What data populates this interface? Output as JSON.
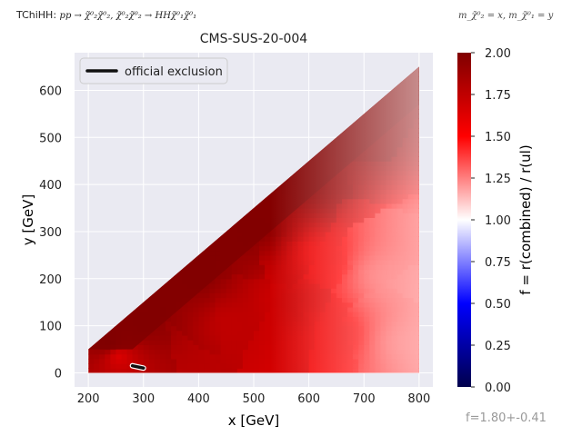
{
  "header": {
    "analysis_prefix": "TChiHH:",
    "analysis_process": "pp → χ̃⁰₂χ̃⁰₂, χ̃⁰₂χ̃⁰₂ → HHχ̃⁰₁χ̃⁰₁",
    "mass_note": "m_χ̃⁰₂ = x, m_χ̃⁰₁ = y",
    "title": "CMS-SUS-20-004"
  },
  "footer": {
    "fit_text": "f=1.80+-0.41"
  },
  "colors": {
    "axes_bg": "#eaeaf2",
    "grid": "#ffffff",
    "exclusion": "#111111",
    "cmap_low": "#00004c",
    "cmap_mid": "#ffffff",
    "cmap_high": "#800000"
  },
  "chart_data": {
    "type": "heatmap",
    "title": "CMS-SUS-20-004",
    "xlabel": "x [GeV]",
    "ylabel": "y [GeV]",
    "xlim": [
      175,
      825
    ],
    "ylim": [
      -30,
      680
    ],
    "xticks": [
      200,
      300,
      400,
      500,
      600,
      700,
      800
    ],
    "yticks": [
      0,
      100,
      200,
      300,
      400,
      500,
      600
    ],
    "grid": true,
    "legend": {
      "placement": "top-left",
      "entries": [
        "official exclusion"
      ]
    },
    "colorbar": {
      "label": "f = r(combined) / r(ul)",
      "range": [
        0.0,
        2.0
      ],
      "ticks": [
        "0.00",
        "0.25",
        "0.50",
        "0.75",
        "1.00",
        "1.25",
        "1.50",
        "1.75",
        "2.00"
      ],
      "colormap": "seismic"
    },
    "region": {
      "x_range": [
        200,
        800
      ],
      "y_min": 0,
      "y_max_rule": "y = x - 150"
    },
    "value_samples": [
      {
        "x": 230,
        "y": 60,
        "f": 2.0
      },
      {
        "x": 250,
        "y": 30,
        "f": 1.65
      },
      {
        "x": 300,
        "y": 100,
        "f": 1.95
      },
      {
        "x": 400,
        "y": 200,
        "f": 1.95
      },
      {
        "x": 450,
        "y": 100,
        "f": 1.75
      },
      {
        "x": 500,
        "y": 300,
        "f": 1.95
      },
      {
        "x": 550,
        "y": 150,
        "f": 1.7
      },
      {
        "x": 600,
        "y": 400,
        "f": 1.95
      },
      {
        "x": 620,
        "y": 250,
        "f": 1.55
      },
      {
        "x": 650,
        "y": 80,
        "f": 1.55
      },
      {
        "x": 700,
        "y": 500,
        "f": 1.95
      },
      {
        "x": 720,
        "y": 200,
        "f": 1.35
      },
      {
        "x": 760,
        "y": 60,
        "f": 1.35
      },
      {
        "x": 780,
        "y": 600,
        "f": 1.95
      },
      {
        "x": 790,
        "y": 300,
        "f": 1.4
      }
    ],
    "exclusion_line": {
      "x": [
        280,
        300
      ],
      "y": [
        15,
        10
      ]
    }
  }
}
